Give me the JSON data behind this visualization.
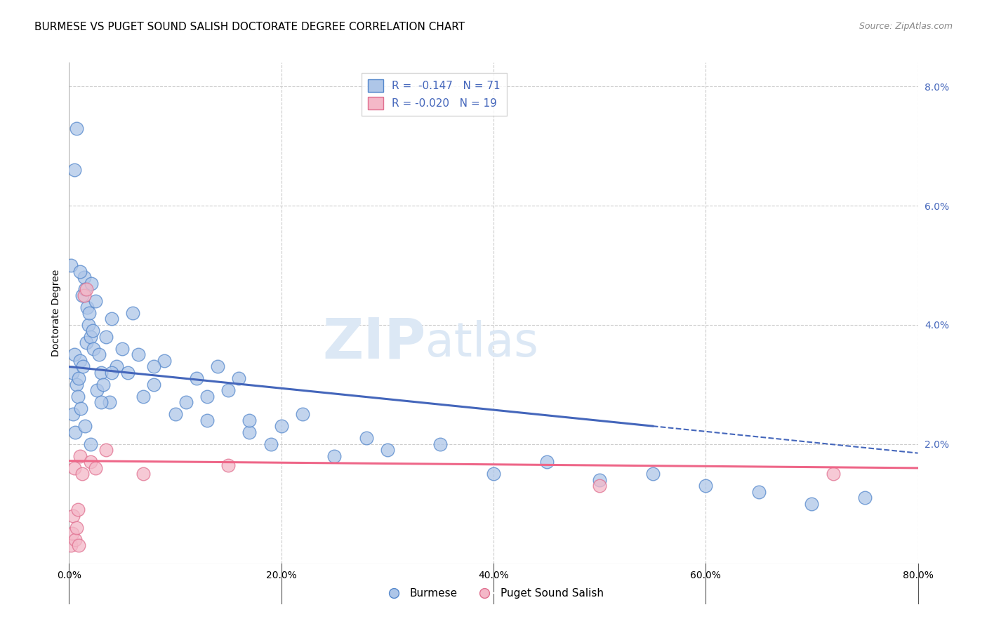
{
  "title": "BURMESE VS PUGET SOUND SALISH DOCTORATE DEGREE CORRELATION CHART",
  "source": "Source: ZipAtlas.com",
  "ylabel": "Doctorate Degree",
  "xlim": [
    0,
    80
  ],
  "ylim": [
    0,
    8.4
  ],
  "yticks": [
    2,
    4,
    6,
    8
  ],
  "background_color": "#ffffff",
  "grid_color": "#cccccc",
  "burmese_color_face": "#aec6e8",
  "burmese_color_edge": "#5588cc",
  "puget_color_face": "#f4b8c8",
  "puget_color_edge": "#e07090",
  "burmese_label": "Burmese",
  "puget_label": "Puget Sound Salish",
  "blue_line_color": "#4466bb",
  "pink_line_color": "#ee6688",
  "blue_line_x0": 0,
  "blue_line_y0": 3.3,
  "blue_line_x1": 80,
  "blue_line_y1": 1.85,
  "blue_solid_end_x": 55,
  "pink_line_x0": 0,
  "pink_line_y0": 1.72,
  "pink_line_x1": 80,
  "pink_line_y1": 1.6,
  "burmese_x": [
    0.3,
    0.4,
    0.5,
    0.6,
    0.7,
    0.8,
    0.9,
    1.0,
    1.1,
    1.2,
    1.3,
    1.4,
    1.5,
    1.6,
    1.7,
    1.8,
    1.9,
    2.0,
    2.1,
    2.2,
    2.3,
    2.5,
    2.6,
    2.8,
    3.0,
    3.2,
    3.5,
    3.8,
    4.0,
    4.5,
    5.0,
    5.5,
    6.0,
    6.5,
    7.0,
    8.0,
    9.0,
    10.0,
    11.0,
    12.0,
    13.0,
    14.0,
    15.0,
    16.0,
    17.0,
    19.0,
    20.0,
    22.0,
    25.0,
    28.0,
    30.0,
    35.0,
    40.0,
    45.0,
    50.0,
    55.0,
    60.0,
    65.0,
    70.0,
    75.0,
    0.2,
    0.5,
    0.7,
    1.0,
    1.5,
    2.0,
    3.0,
    4.0,
    8.0,
    13.0,
    17.0
  ],
  "burmese_y": [
    3.2,
    2.5,
    3.5,
    2.2,
    3.0,
    2.8,
    3.1,
    3.4,
    2.6,
    4.5,
    3.3,
    4.8,
    4.6,
    3.7,
    4.3,
    4.0,
    4.2,
    3.8,
    4.7,
    3.9,
    3.6,
    4.4,
    2.9,
    3.5,
    3.2,
    3.0,
    3.8,
    2.7,
    4.1,
    3.3,
    3.6,
    3.2,
    4.2,
    3.5,
    2.8,
    3.0,
    3.4,
    2.5,
    2.7,
    3.1,
    2.4,
    3.3,
    2.9,
    3.1,
    2.2,
    2.0,
    2.3,
    2.5,
    1.8,
    2.1,
    1.9,
    2.0,
    1.5,
    1.7,
    1.4,
    1.5,
    1.3,
    1.2,
    1.0,
    1.1,
    5.0,
    6.6,
    7.3,
    4.9,
    2.3,
    2.0,
    2.7,
    3.2,
    3.3,
    2.8,
    2.4
  ],
  "puget_x": [
    0.2,
    0.3,
    0.4,
    0.5,
    0.6,
    0.7,
    0.8,
    0.9,
    1.0,
    1.2,
    1.4,
    1.6,
    2.0,
    2.5,
    3.5,
    7.0,
    15.0,
    50.0,
    72.0
  ],
  "puget_y": [
    0.3,
    0.5,
    0.8,
    1.6,
    0.4,
    0.6,
    0.9,
    0.3,
    1.8,
    1.5,
    4.5,
    4.6,
    1.7,
    1.6,
    1.9,
    1.5,
    1.65,
    1.3,
    1.5
  ],
  "watermark_zip": "ZIP",
  "watermark_atlas": "atlas",
  "watermark_color": "#dce8f5",
  "title_fontsize": 11,
  "axis_label_fontsize": 10,
  "tick_fontsize": 10,
  "legend_fontsize": 11,
  "legend_color": "#4466bb"
}
